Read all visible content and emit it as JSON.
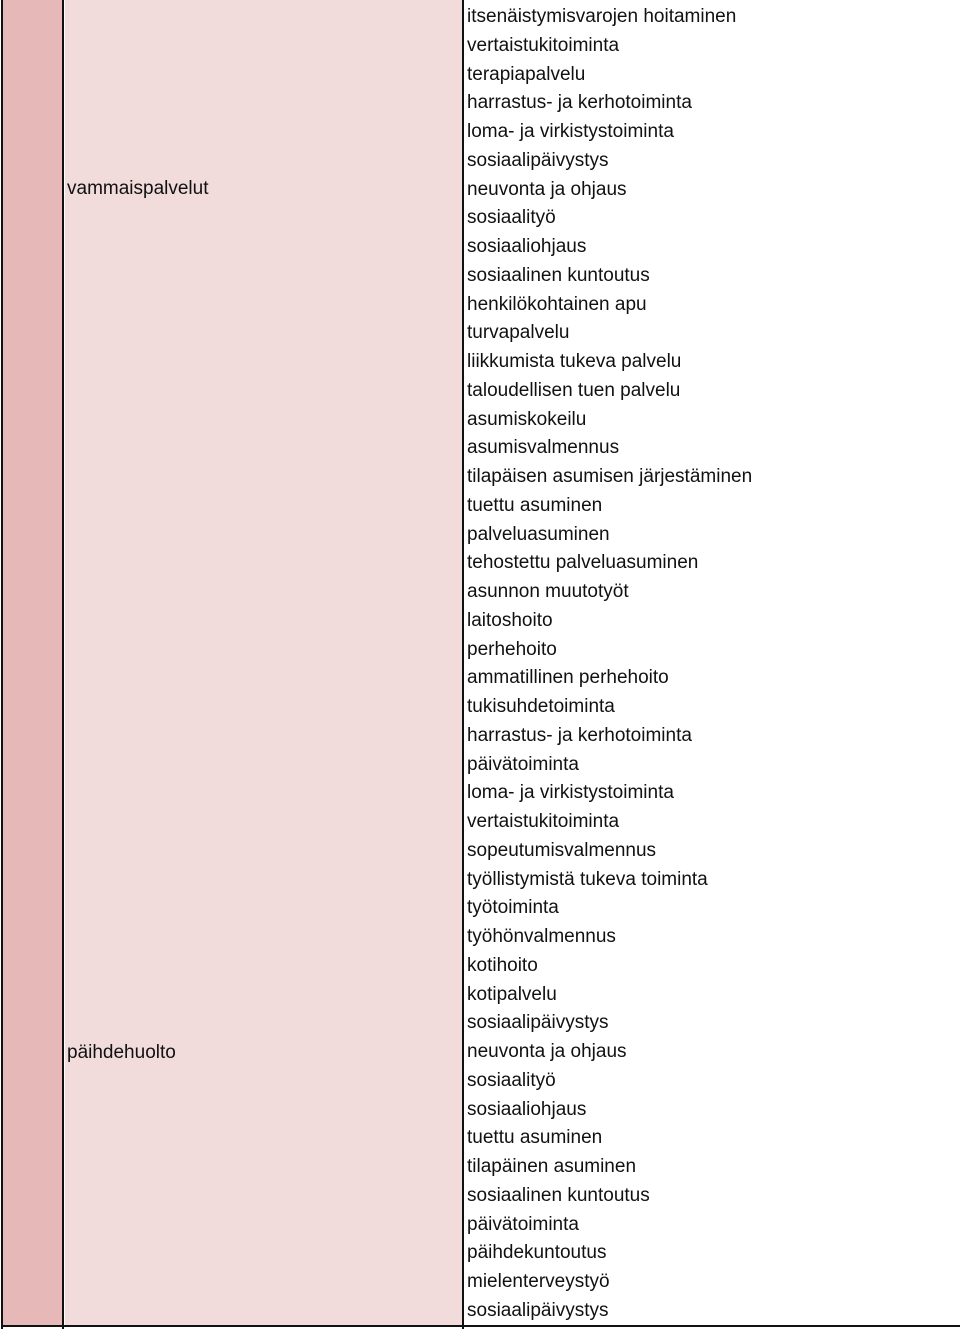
{
  "categories": {
    "vammaispalvelut": "vammaispalvelut",
    "paihdehuolto": "päihdehuolto"
  },
  "services": [
    "itsenäistymisvarojen hoitaminen",
    "vertaistukitoiminta",
    "terapiapalvelu",
    "harrastus- ja kerhotoiminta",
    "loma- ja virkistystoiminta",
    "sosiaalipäivystys",
    "neuvonta ja ohjaus",
    "sosiaalityö",
    "sosiaaliohjaus",
    "sosiaalinen kuntoutus",
    "henkilökohtainen apu",
    "turvapalvelu",
    "liikkumista tukeva palvelu",
    "taloudellisen tuen palvelu",
    "asumiskokeilu",
    "asumisvalmennus",
    "tilapäisen asumisen järjestäminen",
    "tuettu asuminen",
    "palveluasuminen",
    "tehostettu palveluasuminen",
    "asunnon muutotyöt",
    "laitoshoito",
    "perhehoito",
    "ammatillinen perhehoito",
    "tukisuhdetoiminta",
    "harrastus- ja kerhotoiminta",
    "päivätoiminta",
    "loma- ja virkistystoiminta",
    "vertaistukitoiminta",
    "sopeutumisvalmennus",
    "työllistymistä tukeva toiminta",
    "työtoiminta",
    "työhönvalmennus",
    "kotihoito",
    "kotipalvelu",
    "sosiaalipäivystys",
    "neuvonta ja ohjaus",
    "sosiaalityö",
    "sosiaaliohjaus",
    "tuettu asuminen",
    "tilapäinen asuminen",
    "sosiaalinen kuntoutus",
    "päivätoiminta",
    "päihdekuntoutus",
    "mielenterveystyö",
    "sosiaalipäivystys"
  ]
}
